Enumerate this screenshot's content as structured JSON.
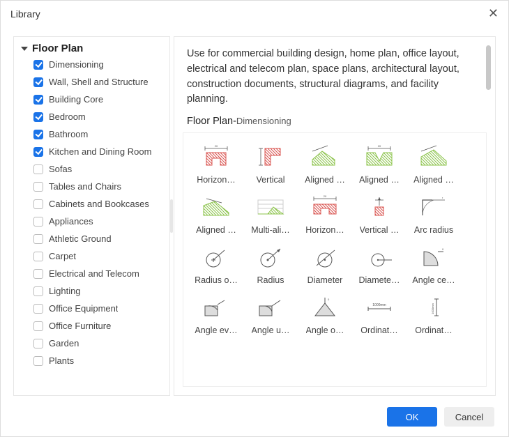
{
  "window": {
    "title": "Library"
  },
  "colors": {
    "accent": "#1a73e8",
    "red": "#d9534f",
    "green": "#8bc34a",
    "gray": "#cccccc",
    "dark": "#555555"
  },
  "sidebar": {
    "category": "Floor Plan",
    "items": [
      {
        "label": "Dimensioning",
        "checked": true
      },
      {
        "label": "Wall, Shell and Structure",
        "checked": true
      },
      {
        "label": "Building Core",
        "checked": true
      },
      {
        "label": "Bedroom",
        "checked": true
      },
      {
        "label": "Bathroom",
        "checked": true
      },
      {
        "label": "Kitchen and Dining Room",
        "checked": true
      },
      {
        "label": "Sofas",
        "checked": false
      },
      {
        "label": "Tables and Chairs",
        "checked": false
      },
      {
        "label": "Cabinets and Bookcases",
        "checked": false
      },
      {
        "label": "Appliances",
        "checked": false
      },
      {
        "label": "Athletic Ground",
        "checked": false
      },
      {
        "label": "Carpet",
        "checked": false
      },
      {
        "label": "Electrical and Telecom",
        "checked": false
      },
      {
        "label": "Lighting",
        "checked": false
      },
      {
        "label": "Office Equipment",
        "checked": false
      },
      {
        "label": "Office Furniture",
        "checked": false
      },
      {
        "label": "Garden",
        "checked": false
      },
      {
        "label": "Plants",
        "checked": false
      }
    ]
  },
  "main": {
    "description": "Use for commercial building design, home plan, office layout, electrical and telecom plan, space plans, architectural layout, construction documents, structural diagrams, and facility planning.",
    "heading_prefix": "Floor Plan-",
    "heading_sub": "Dimensioning",
    "grid": [
      [
        {
          "label": "Horizon…",
          "icon": "red-ubracket"
        },
        {
          "label": "Vertical",
          "icon": "red-lshape"
        },
        {
          "label": "Aligned …",
          "icon": "green-hill-1"
        },
        {
          "label": "Aligned …",
          "icon": "green-valley"
        },
        {
          "label": "Aligned …",
          "icon": "green-hill-2"
        }
      ],
      [
        {
          "label": "Aligned …",
          "icon": "green-hill-3"
        },
        {
          "label": "Multi-ali…",
          "icon": "multi-align"
        },
        {
          "label": "Horizon…",
          "icon": "red-ubracket-wide"
        },
        {
          "label": "Vertical …",
          "icon": "red-vertical-dim"
        },
        {
          "label": "Arc radius",
          "icon": "arc-radius"
        }
      ],
      [
        {
          "label": "Radius o…",
          "icon": "circle-plus-arrow"
        },
        {
          "label": "Radius",
          "icon": "circle-arrow-out"
        },
        {
          "label": "Diameter",
          "icon": "circle-dia"
        },
        {
          "label": "Diamete…",
          "icon": "circle-dia-line"
        },
        {
          "label": "Angle ce…",
          "icon": "angle-wedge"
        }
      ],
      [
        {
          "label": "Angle ev…",
          "icon": "angle-box-1"
        },
        {
          "label": "Angle u…",
          "icon": "angle-box-2"
        },
        {
          "label": "Angle o…",
          "icon": "angle-tri"
        },
        {
          "label": "Ordinat…",
          "icon": "ordinate-h"
        },
        {
          "label": "Ordinat…",
          "icon": "ordinate-v"
        }
      ]
    ]
  },
  "footer": {
    "ok": "OK",
    "cancel": "Cancel"
  }
}
